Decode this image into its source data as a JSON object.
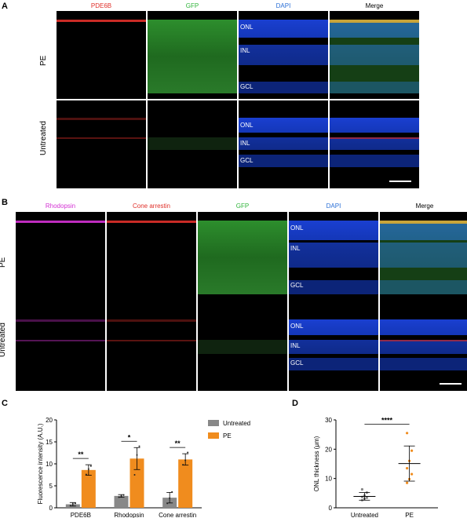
{
  "panels": {
    "A": {
      "label": "A",
      "channels": [
        "PDE6B",
        "GFP",
        "DAPI",
        "Merge"
      ],
      "channel_colors": [
        "#e0302a",
        "#31b53c",
        "#2a6fd6",
        "#000000"
      ],
      "rows": [
        "PE",
        "Untreated"
      ],
      "layers_pe": [
        "ONL",
        "INL",
        "GCL"
      ],
      "layers_untreated": [
        "ONL",
        "INL",
        "GCL"
      ]
    },
    "B": {
      "label": "B",
      "channels": [
        "Rhodopsin",
        "Cone arrestin",
        "GFP",
        "DAPI",
        "Merge"
      ],
      "channel_colors": [
        "#d431d4",
        "#e0302a",
        "#31b53c",
        "#2a6fd6",
        "#000000"
      ],
      "rows": [
        "PE",
        "Untreated"
      ],
      "layers_pe": [
        "ONL",
        "INL",
        "GCL"
      ],
      "layers_untreated": [
        "ONL",
        "INL",
        "GCL"
      ]
    },
    "C": {
      "label": "C"
    },
    "D": {
      "label": "D"
    }
  },
  "chart_data": [
    {
      "type": "bar",
      "categories": [
        "PDE6B",
        "Rhodopsin",
        "Cone arrestin"
      ],
      "series": [
        {
          "name": "Untreated",
          "color": "#888888",
          "values": [
            0.8,
            2.7,
            2.3
          ],
          "errors": [
            0.4,
            0.3,
            1.2
          ],
          "points": [
            [
              0.5,
              0.9,
              1.0
            ],
            [
              2.4,
              2.7,
              2.9
            ],
            [
              1.0,
              2.2,
              3.6
            ]
          ]
        },
        {
          "name": "PE",
          "color": "#f08c1e",
          "values": [
            8.6,
            11.2,
            11.0
          ],
          "errors": [
            1.2,
            2.5,
            1.3
          ],
          "points": [
            [
              7.6,
              8.8,
              9.5
            ],
            [
              7.5,
              12.0,
              14.0
            ],
            [
              9.8,
              10.8,
              12.6
            ]
          ]
        }
      ],
      "ylabel": "Fluorescence intensity (A.U.)",
      "ylim": [
        0,
        20
      ],
      "yticks": [
        0,
        5,
        10,
        15,
        20
      ],
      "significance": [
        "**",
        "*",
        "**"
      ],
      "legend": "top-right"
    },
    {
      "type": "scatter",
      "categories": [
        "Untreated",
        "PE"
      ],
      "series": [
        {
          "name": "Untreated",
          "color": "#888888",
          "mean": 3.9,
          "sd": 1.3,
          "points": [
            2.6,
            3.1,
            3.4,
            3.7,
            4.2,
            5.2,
            6.3
          ]
        },
        {
          "name": "PE",
          "color": "#f08c1e",
          "mean": 15.1,
          "sd": 6.0,
          "points": [
            8.5,
            9.8,
            11.5,
            13.5,
            16.0,
            19.5,
            25.5
          ]
        }
      ],
      "ylabel": "ONL thickness (μm)",
      "ylim": [
        0,
        30
      ],
      "yticks": [
        0,
        10,
        20,
        30
      ],
      "significance": "****"
    }
  ]
}
